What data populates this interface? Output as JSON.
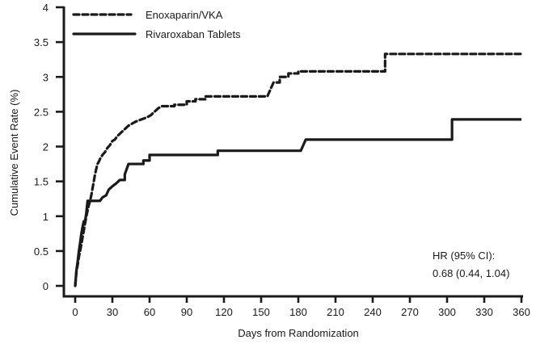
{
  "chart_data": {
    "type": "line",
    "step": true,
    "title": "",
    "xlabel": "Days from Randomization",
    "ylabel": "Cumulative Event Rate (%)",
    "xlim": [
      0,
      360
    ],
    "ylim": [
      0,
      4
    ],
    "xticks": [
      0,
      30,
      60,
      90,
      120,
      150,
      180,
      210,
      240,
      270,
      300,
      330,
      360
    ],
    "yticks": [
      0,
      0.5,
      1,
      1.5,
      2,
      2.5,
      3,
      3.5,
      4
    ],
    "ytick_labels": [
      "0",
      "0.5",
      "1",
      "1.5",
      "2",
      "2.5",
      "3",
      "3.5",
      "4"
    ],
    "xtick_labels": [
      "0",
      "30",
      "60",
      "90",
      "120",
      "150",
      "180",
      "210",
      "240",
      "270",
      "300",
      "330",
      "360"
    ],
    "grid": false,
    "legend_position": "top-left",
    "series": [
      {
        "name": "Enoxaparin/VKA",
        "style": "dashed",
        "color": "#1a1a1a",
        "x": [
          0,
          1,
          2,
          3,
          4,
          5,
          6,
          7,
          8,
          9,
          10,
          11,
          12,
          13,
          14,
          15,
          16,
          17,
          18,
          19,
          20,
          22,
          24,
          26,
          28,
          30,
          32,
          34,
          37,
          40,
          43,
          46,
          49,
          52,
          55,
          58,
          61,
          64,
          67,
          70,
          80,
          90,
          97,
          105,
          120,
          140,
          155,
          157,
          160,
          165,
          172,
          180,
          200,
          230,
          250,
          360
        ],
        "y": [
          0,
          0.2,
          0.3,
          0.42,
          0.5,
          0.6,
          0.7,
          0.8,
          0.9,
          1.0,
          1.08,
          1.16,
          1.22,
          1.3,
          1.4,
          1.5,
          1.6,
          1.68,
          1.75,
          1.78,
          1.82,
          1.88,
          1.92,
          1.98,
          2.02,
          2.08,
          2.1,
          2.15,
          2.2,
          2.25,
          2.3,
          2.33,
          2.36,
          2.38,
          2.4,
          2.42,
          2.45,
          2.5,
          2.55,
          2.58,
          2.6,
          2.65,
          2.68,
          2.72,
          2.72,
          2.72,
          2.72,
          2.8,
          2.92,
          3.0,
          3.05,
          3.08,
          3.08,
          3.08,
          3.33,
          3.33
        ]
      },
      {
        "name": "Rivaroxaban Tablets",
        "style": "solid",
        "color": "#1a1a1a",
        "x": [
          0,
          1,
          2,
          3,
          4,
          5,
          6,
          7,
          8,
          9,
          10,
          15,
          20,
          22,
          25,
          27,
          30,
          33,
          36,
          40,
          43,
          50,
          55,
          60,
          80,
          100,
          115,
          140,
          160,
          182,
          184,
          186,
          200,
          250,
          304,
          360
        ],
        "y": [
          0,
          0.22,
          0.35,
          0.5,
          0.62,
          0.75,
          0.85,
          0.93,
          0.93,
          1.05,
          1.22,
          1.22,
          1.22,
          1.27,
          1.3,
          1.38,
          1.43,
          1.47,
          1.52,
          1.6,
          1.75,
          1.75,
          1.8,
          1.88,
          1.88,
          1.88,
          1.94,
          1.94,
          1.94,
          1.94,
          2.02,
          2.1,
          2.1,
          2.1,
          2.39,
          2.39
        ]
      }
    ],
    "annotations": [
      {
        "text": "HR (95% CI):",
        "x_data": 300,
        "y_data": 0.65
      },
      {
        "text": "0.68 (0.44, 1.04)",
        "x_data": 300,
        "y_data": 0.3
      }
    ]
  }
}
